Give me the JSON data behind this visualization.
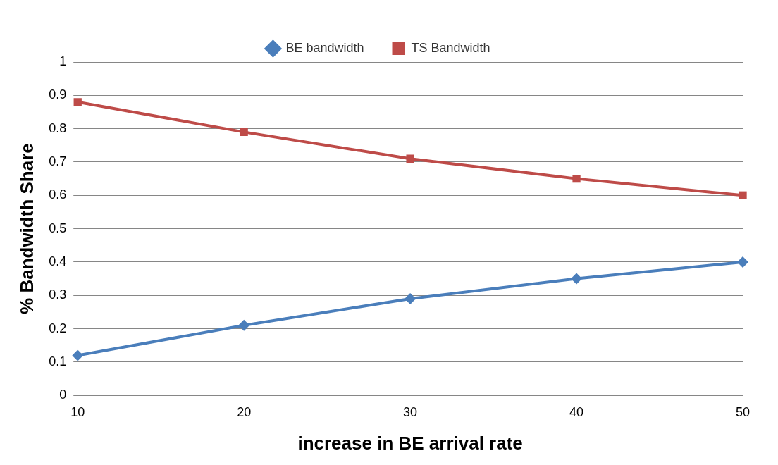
{
  "chart_data": {
    "type": "line",
    "xlabel": "increase in BE arrival rate",
    "ylabel": "% Bandwidth Share",
    "categories": [
      "10",
      "20",
      "30",
      "40",
      "50"
    ],
    "series": [
      {
        "name": "BE bandwidth",
        "color": "#4a7ebb",
        "marker": "diamond",
        "values": [
          0.12,
          0.21,
          0.29,
          0.35,
          0.4
        ]
      },
      {
        "name": "TS Bandwidth",
        "color": "#be4b48",
        "marker": "square",
        "values": [
          0.88,
          0.79,
          0.71,
          0.65,
          0.6
        ]
      }
    ],
    "ylim": [
      0,
      1
    ],
    "yticks": [
      0,
      0.1,
      0.2,
      0.3,
      0.4,
      0.5,
      0.6,
      0.7,
      0.8,
      0.9,
      1
    ],
    "grid": "y",
    "legend": "top",
    "line_style": "solid"
  }
}
